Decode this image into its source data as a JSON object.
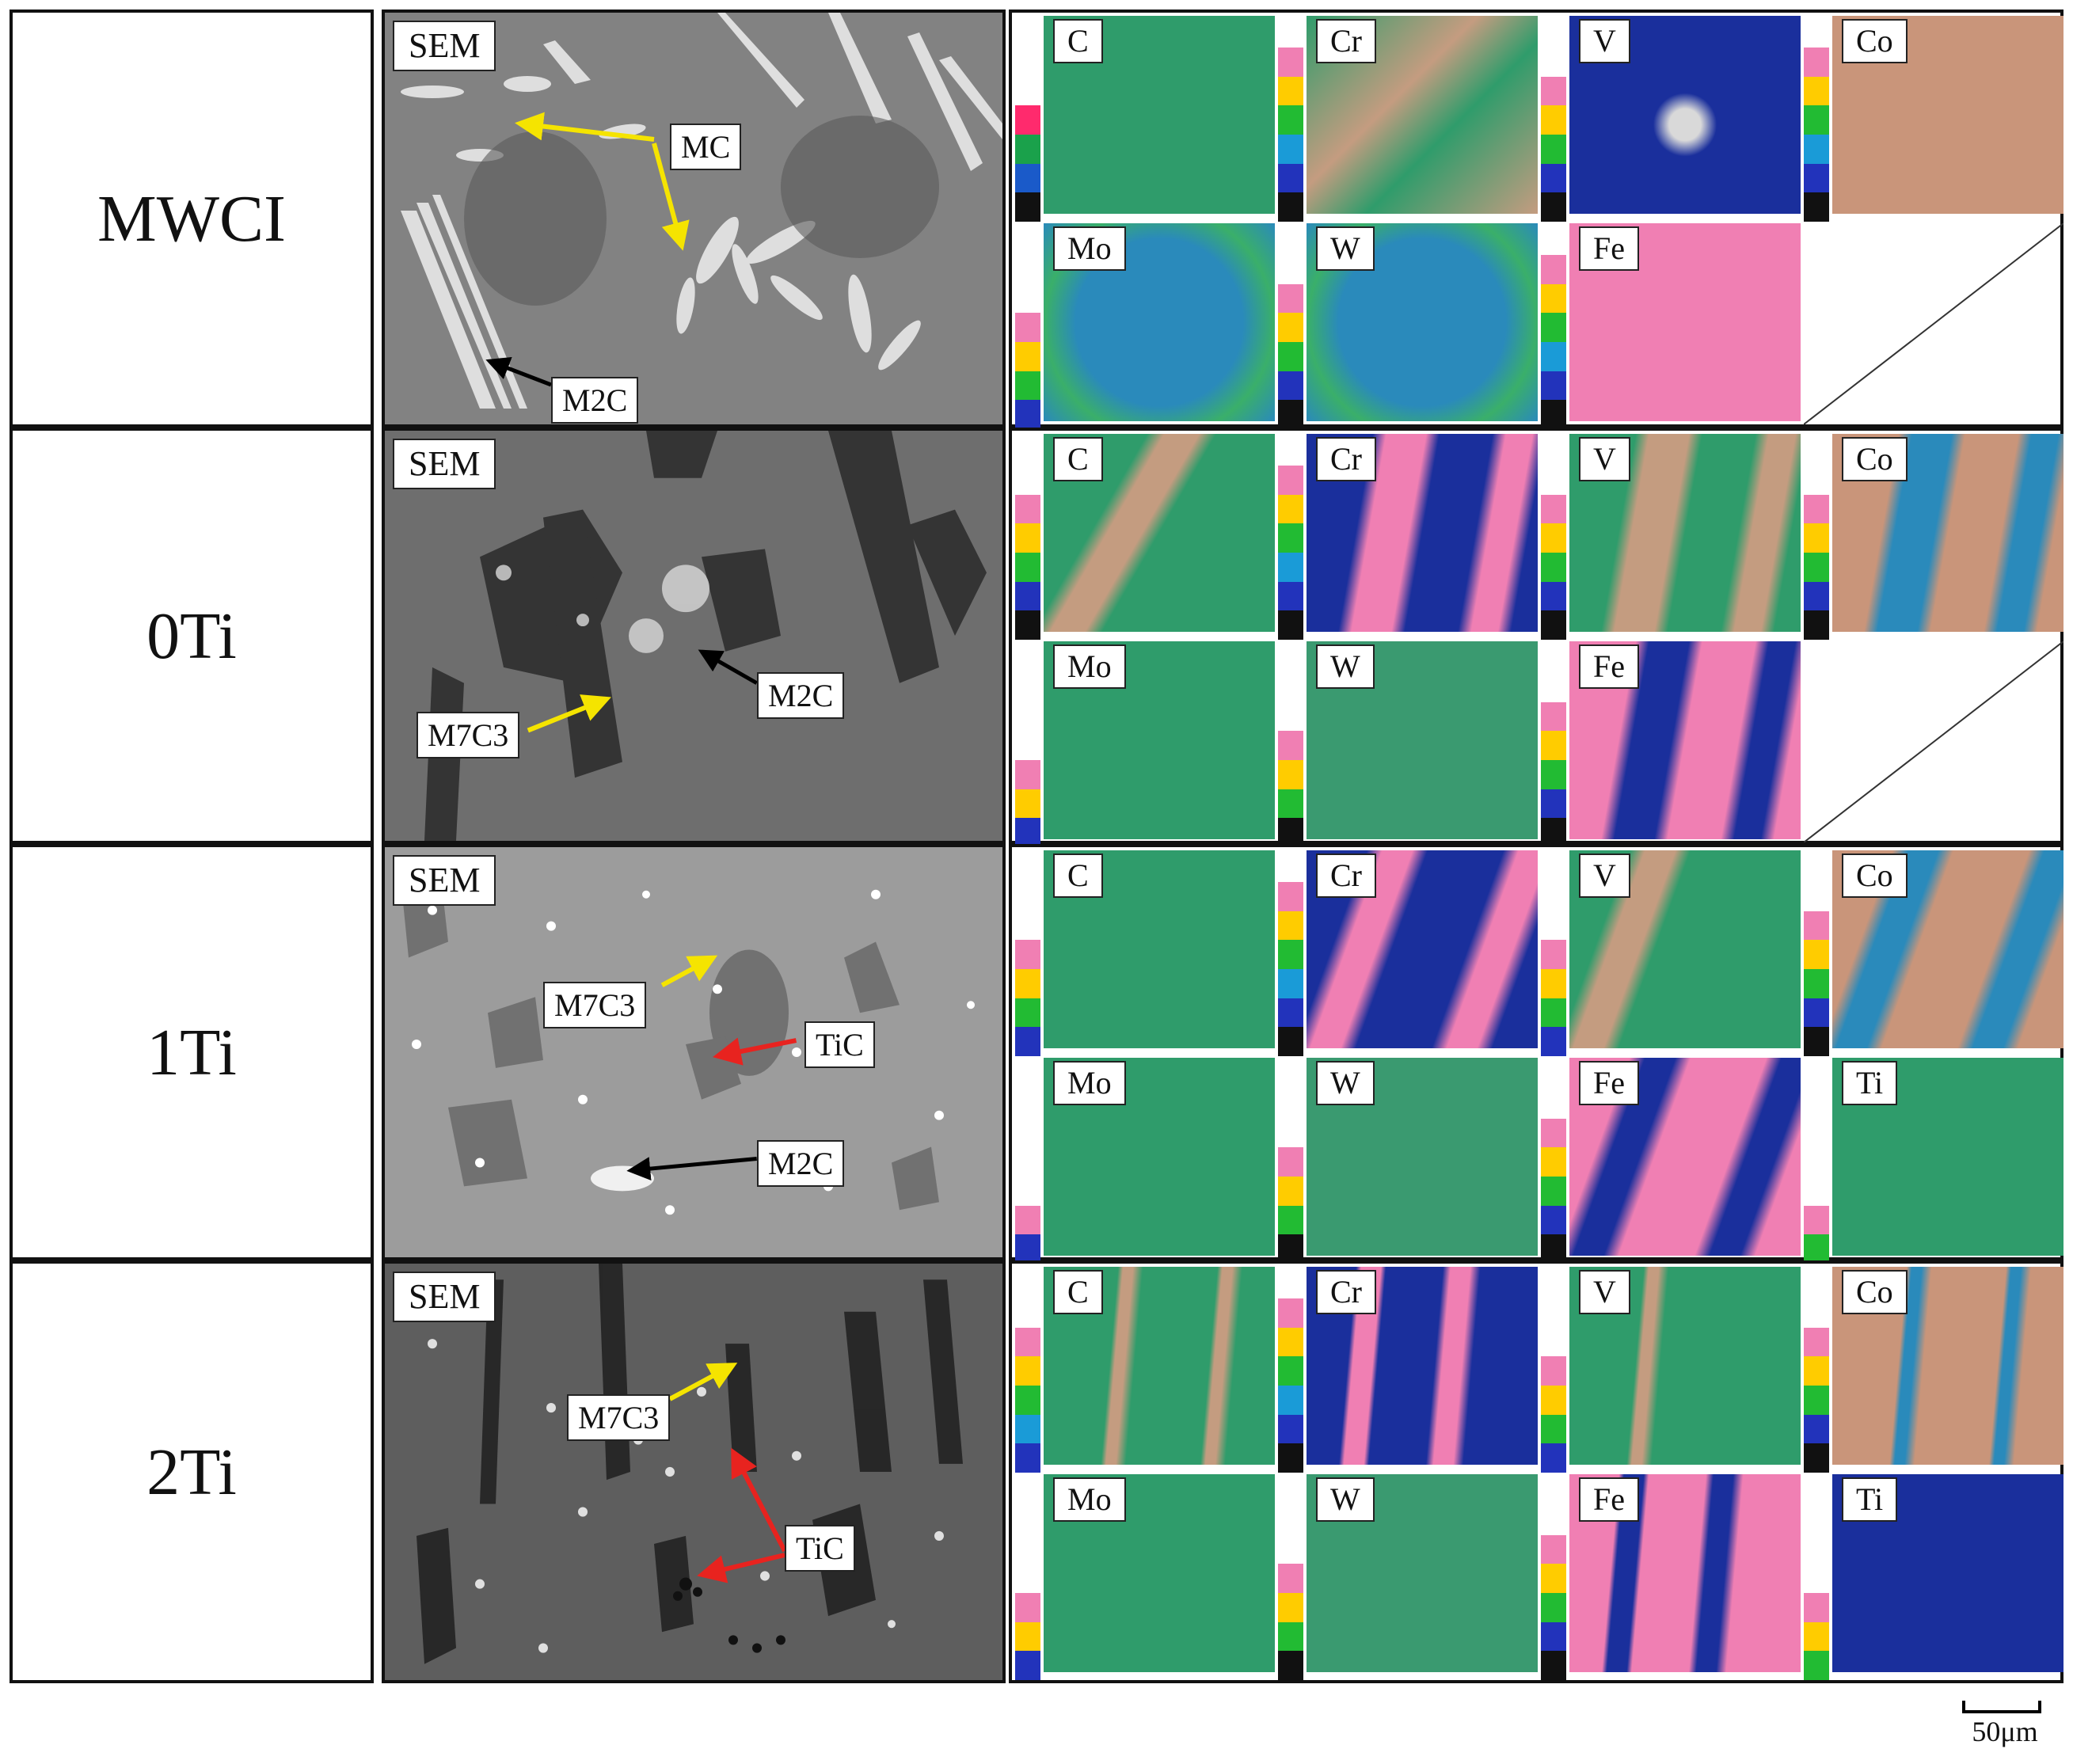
{
  "rows": [
    {
      "label": "MWCI",
      "sem_tag": "SEM",
      "phases": [
        {
          "name": "mc",
          "text": "MC"
        },
        {
          "name": "m2c",
          "text": "M2C"
        }
      ],
      "maps": [
        {
          "element": "C",
          "palette": "green"
        },
        {
          "element": "Cr",
          "palette": "green-peach"
        },
        {
          "element": "V",
          "palette": "blue"
        },
        {
          "element": "Co",
          "palette": "peach"
        },
        {
          "element": "Mo",
          "palette": "blue-green"
        },
        {
          "element": "W",
          "palette": "blue-green"
        },
        {
          "element": "Fe",
          "palette": "pink"
        }
      ]
    },
    {
      "label": "0Ti",
      "sem_tag": "SEM",
      "phases": [
        {
          "name": "m2c",
          "text": "M2C"
        },
        {
          "name": "m7c3",
          "text": "M7C3"
        }
      ],
      "maps": [
        {
          "element": "C",
          "palette": "green"
        },
        {
          "element": "Cr",
          "palette": "pink-blue"
        },
        {
          "element": "V",
          "palette": "green-peach"
        },
        {
          "element": "Co",
          "palette": "peach-blue"
        },
        {
          "element": "Mo",
          "palette": "green"
        },
        {
          "element": "W",
          "palette": "green"
        },
        {
          "element": "Fe",
          "palette": "pink-blue"
        }
      ]
    },
    {
      "label": "1Ti",
      "sem_tag": "SEM",
      "phases": [
        {
          "name": "m7c3",
          "text": "M7C3"
        },
        {
          "name": "tic",
          "text": "TiC"
        },
        {
          "name": "m2c",
          "text": "M2C"
        }
      ],
      "maps": [
        {
          "element": "C",
          "palette": "green"
        },
        {
          "element": "Cr",
          "palette": "pink-blue"
        },
        {
          "element": "V",
          "palette": "green-peach"
        },
        {
          "element": "Co",
          "palette": "peach-blue"
        },
        {
          "element": "Mo",
          "palette": "green"
        },
        {
          "element": "W",
          "palette": "green"
        },
        {
          "element": "Fe",
          "palette": "pink-blue"
        },
        {
          "element": "Ti",
          "palette": "green"
        }
      ]
    },
    {
      "label": "2Ti",
      "sem_tag": "SEM",
      "phases": [
        {
          "name": "m7c3",
          "text": "M7C3"
        },
        {
          "name": "tic",
          "text": "TiC"
        }
      ],
      "maps": [
        {
          "element": "C",
          "palette": "green"
        },
        {
          "element": "Cr",
          "palette": "pink-blue"
        },
        {
          "element": "V",
          "palette": "green-peach"
        },
        {
          "element": "Co",
          "palette": "peach-blue"
        },
        {
          "element": "Mo",
          "palette": "green"
        },
        {
          "element": "W",
          "palette": "green"
        },
        {
          "element": "Fe",
          "palette": "pink-blue"
        },
        {
          "element": "Ti",
          "palette": "blue"
        }
      ]
    }
  ],
  "scale_bar": {
    "label": "50μm"
  },
  "colors": {
    "border": "#111111",
    "arrow_yellow": "#f5e400",
    "arrow_red": "#e8231f",
    "arrow_black": "#000000",
    "map_green": "#2f9c6b",
    "map_blue": "#1a2f9c",
    "map_pink": "#f07fb3",
    "map_peach": "#d19a72"
  }
}
